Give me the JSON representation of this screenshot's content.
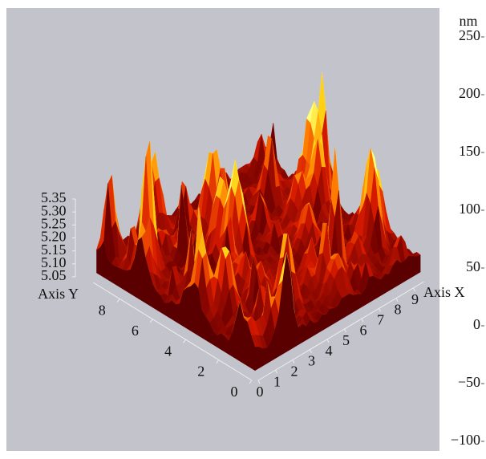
{
  "chart_data": {
    "type": "surface",
    "colorbar_unit": "nm",
    "colorbar_ticks": [
      250,
      200,
      150,
      100,
      50,
      0,
      {
        "value": -50,
        "label": "−50"
      },
      {
        "value": -100,
        "label": "−100"
      }
    ],
    "zticks": [
      5.05,
      {
        "value": 5.1,
        "label": "5.10"
      },
      5.15,
      {
        "value": 5.2,
        "label": "5.20"
      },
      5.25,
      {
        "value": 5.3,
        "label": "5.30"
      },
      5.35
    ],
    "ylabel": "Axis Y",
    "yticks": [
      0,
      2,
      4,
      6,
      8
    ],
    "xlabel": "Axis X",
    "xticks": [
      0,
      1,
      2,
      3,
      4,
      5,
      6,
      7,
      8,
      9
    ]
  }
}
